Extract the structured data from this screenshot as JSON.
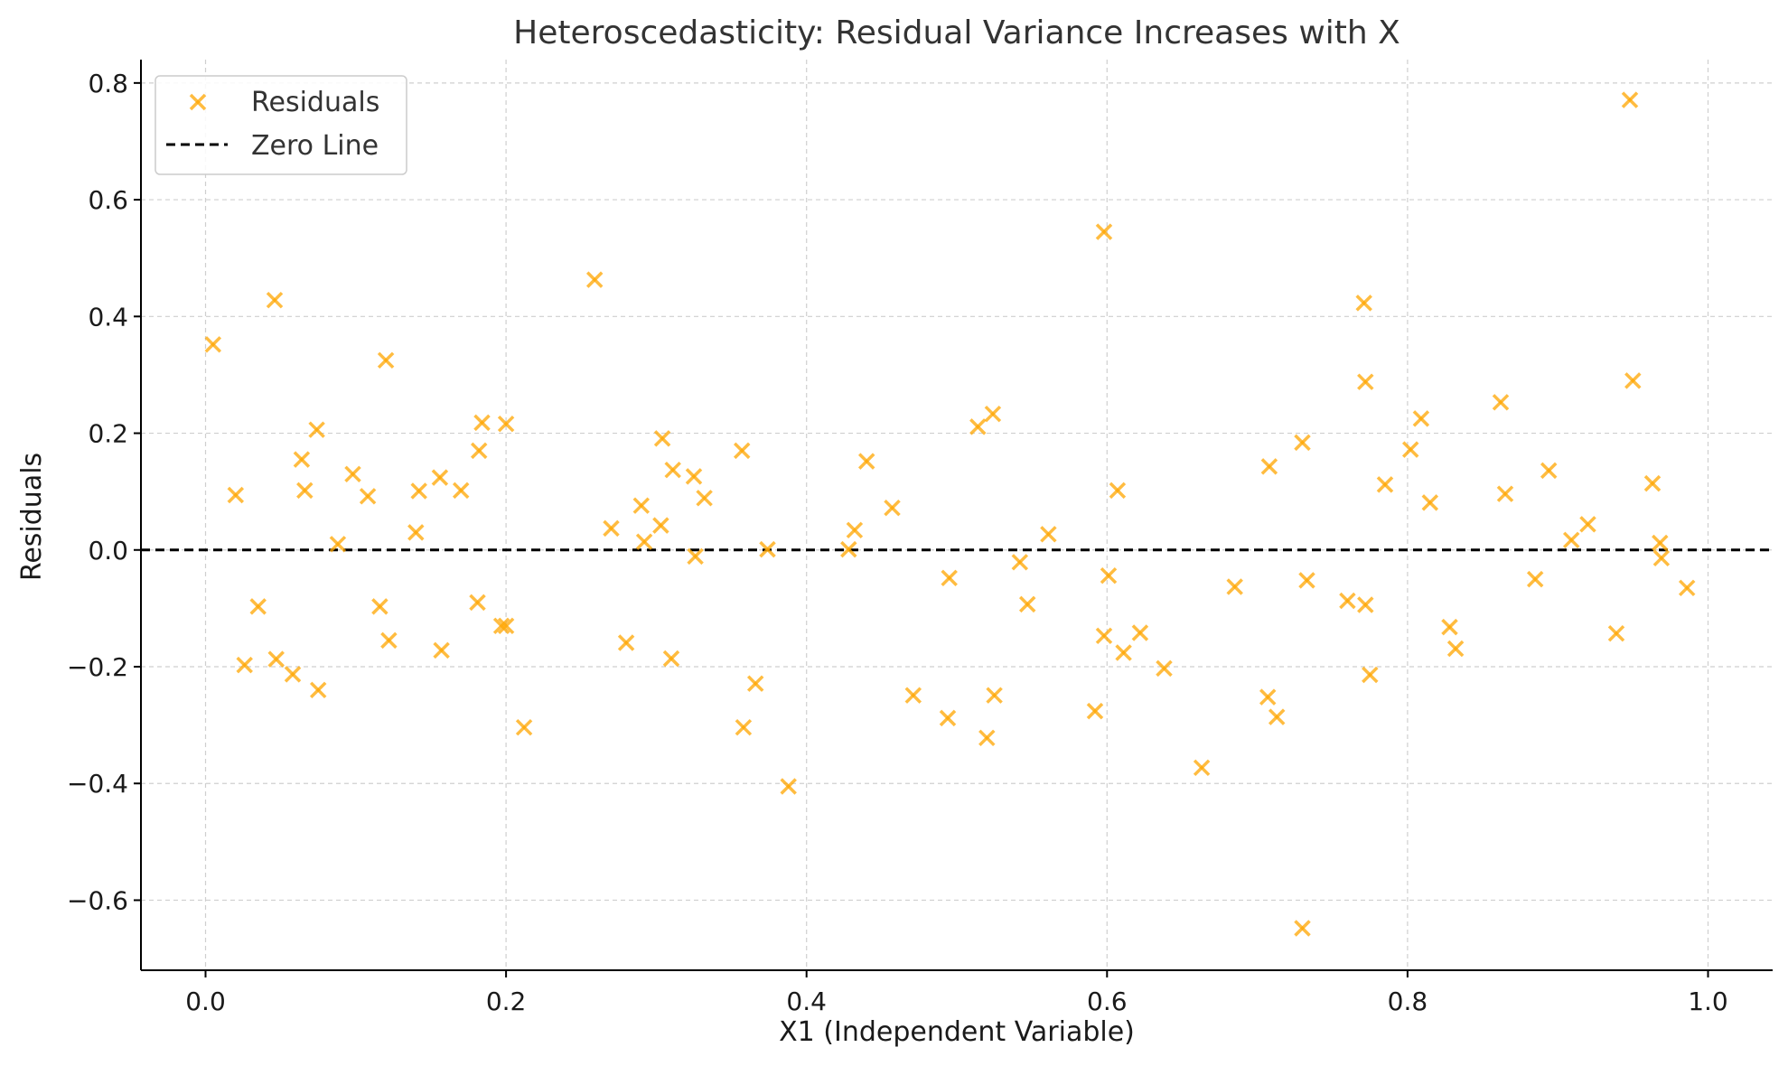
{
  "chart_data": {
    "type": "scatter",
    "title": "Heteroscedasticity: Residual Variance Increases with X",
    "xlabel": "X1 (Independent Variable)",
    "ylabel": "Residuals",
    "xlim": [
      -0.043,
      1.043
    ],
    "ylim": [
      -0.72,
      0.84
    ],
    "xticks": [
      0.0,
      0.2,
      0.4,
      0.6,
      0.8,
      1.0
    ],
    "xtick_labels": [
      "0.0",
      "0.2",
      "0.4",
      "0.6",
      "0.8",
      "1.0"
    ],
    "yticks": [
      -0.6,
      -0.4,
      -0.2,
      0.0,
      0.2,
      0.4,
      0.6,
      0.8
    ],
    "ytick_labels": [
      "−0.6",
      "−0.4",
      "−0.2",
      "0.0",
      "0.2",
      "0.4",
      "0.6",
      "0.8"
    ],
    "grid": true,
    "legend_position": "top-left",
    "colors": {
      "points": "#FFA500",
      "zero_line": "#000000"
    },
    "series": [
      {
        "name": "Residuals",
        "marker": "x",
        "points": [
          [
            0.005,
            0.352
          ],
          [
            0.02,
            0.094
          ],
          [
            0.026,
            -0.197
          ],
          [
            0.035,
            -0.097
          ],
          [
            0.046,
            0.428
          ],
          [
            0.047,
            -0.187
          ],
          [
            0.058,
            -0.213
          ],
          [
            0.064,
            0.155
          ],
          [
            0.066,
            0.102
          ],
          [
            0.074,
            0.206
          ],
          [
            0.075,
            -0.24
          ],
          [
            0.088,
            0.01
          ],
          [
            0.098,
            0.13
          ],
          [
            0.108,
            0.092
          ],
          [
            0.116,
            -0.097
          ],
          [
            0.12,
            0.325
          ],
          [
            0.122,
            -0.155
          ],
          [
            0.14,
            0.03
          ],
          [
            0.142,
            0.101
          ],
          [
            0.156,
            0.124
          ],
          [
            0.157,
            -0.172
          ],
          [
            0.17,
            0.102
          ],
          [
            0.181,
            -0.09
          ],
          [
            0.182,
            0.17
          ],
          [
            0.184,
            0.218
          ],
          [
            0.197,
            -0.13
          ],
          [
            0.2,
            0.216
          ],
          [
            0.2,
            -0.13
          ],
          [
            0.212,
            -0.304
          ],
          [
            0.259,
            0.463
          ],
          [
            0.27,
            0.037
          ],
          [
            0.28,
            -0.159
          ],
          [
            0.29,
            0.076
          ],
          [
            0.292,
            0.014
          ],
          [
            0.303,
            0.042
          ],
          [
            0.304,
            0.191
          ],
          [
            0.31,
            -0.186
          ],
          [
            0.311,
            0.137
          ],
          [
            0.325,
            0.126
          ],
          [
            0.326,
            -0.011
          ],
          [
            0.332,
            0.089
          ],
          [
            0.357,
            0.17
          ],
          [
            0.358,
            -0.304
          ],
          [
            0.366,
            -0.229
          ],
          [
            0.374,
            0.001
          ],
          [
            0.388,
            -0.405
          ],
          [
            0.428,
            0.001
          ],
          [
            0.432,
            0.034
          ],
          [
            0.44,
            0.152
          ],
          [
            0.457,
            0.072
          ],
          [
            0.471,
            -0.249
          ],
          [
            0.494,
            -0.288
          ],
          [
            0.495,
            -0.048
          ],
          [
            0.514,
            0.211
          ],
          [
            0.52,
            -0.322
          ],
          [
            0.524,
            0.233
          ],
          [
            0.525,
            -0.249
          ],
          [
            0.542,
            -0.021
          ],
          [
            0.547,
            -0.093
          ],
          [
            0.561,
            0.027
          ],
          [
            0.592,
            -0.276
          ],
          [
            0.598,
            -0.147
          ],
          [
            0.598,
            0.545
          ],
          [
            0.601,
            -0.044
          ],
          [
            0.607,
            0.102
          ],
          [
            0.611,
            -0.176
          ],
          [
            0.622,
            -0.142
          ],
          [
            0.638,
            -0.203
          ],
          [
            0.663,
            -0.373
          ],
          [
            0.685,
            -0.063
          ],
          [
            0.707,
            -0.252
          ],
          [
            0.708,
            0.143
          ],
          [
            0.713,
            -0.286
          ],
          [
            0.73,
            -0.648
          ],
          [
            0.73,
            0.184
          ],
          [
            0.733,
            -0.052
          ],
          [
            0.76,
            -0.087
          ],
          [
            0.771,
            0.423
          ],
          [
            0.772,
            0.288
          ],
          [
            0.772,
            -0.094
          ],
          [
            0.775,
            -0.214
          ],
          [
            0.785,
            0.112
          ],
          [
            0.802,
            0.172
          ],
          [
            0.809,
            0.225
          ],
          [
            0.815,
            0.081
          ],
          [
            0.828,
            -0.132
          ],
          [
            0.832,
            -0.169
          ],
          [
            0.862,
            0.253
          ],
          [
            0.865,
            0.096
          ],
          [
            0.885,
            -0.05
          ],
          [
            0.894,
            0.136
          ],
          [
            0.909,
            0.017
          ],
          [
            0.92,
            0.044
          ],
          [
            0.939,
            -0.143
          ],
          [
            0.948,
            0.771
          ],
          [
            0.95,
            0.29
          ],
          [
            0.963,
            0.114
          ],
          [
            0.968,
            0.012
          ],
          [
            0.969,
            -0.014
          ],
          [
            0.986,
            -0.065
          ]
        ]
      },
      {
        "name": "Zero Line",
        "style": "dashed",
        "y": 0.0
      }
    ]
  }
}
